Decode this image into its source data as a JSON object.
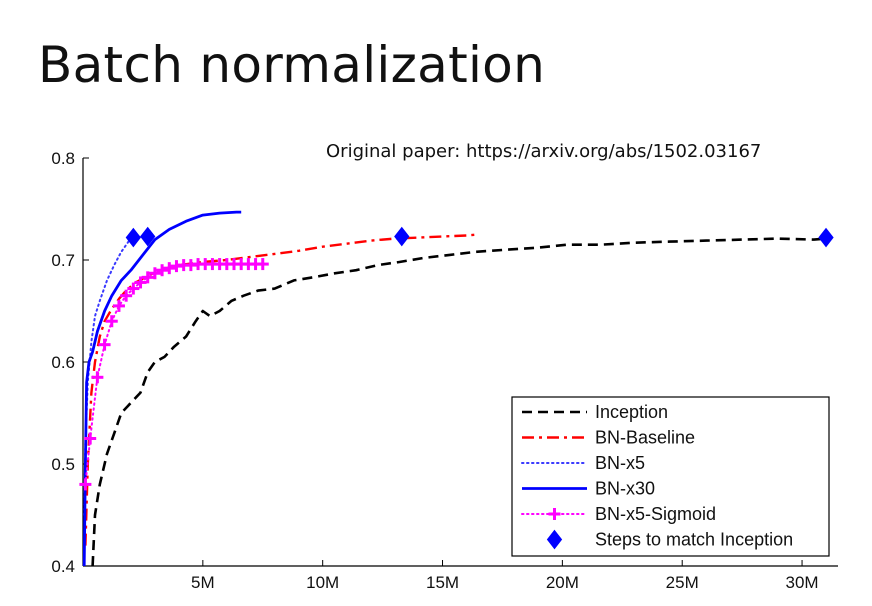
{
  "slide": {
    "title": "Batch normalization",
    "paper_ref": "Original paper: https://arxiv.org/abs/1502.03167"
  },
  "chart_data": {
    "type": "line",
    "xlim": [
      0,
      31.5
    ],
    "ylim": [
      0.4,
      0.8
    ],
    "x_ticks": [
      {
        "value": 5,
        "label": "5M"
      },
      {
        "value": 10,
        "label": "10M"
      },
      {
        "value": 15,
        "label": "15M"
      },
      {
        "value": 20,
        "label": "20M"
      },
      {
        "value": 25,
        "label": "25M"
      },
      {
        "value": 30,
        "label": "30M"
      }
    ],
    "y_ticks": [
      {
        "value": 0.4,
        "label": "0.4"
      },
      {
        "value": 0.5,
        "label": "0.5"
      },
      {
        "value": 0.6,
        "label": "0.6"
      },
      {
        "value": 0.7,
        "label": "0.7"
      },
      {
        "value": 0.8,
        "label": "0.8"
      }
    ],
    "grid": false,
    "legend_position": "bottom-right",
    "series": [
      {
        "name": "Inception",
        "color": "#000000",
        "style": "dashed",
        "x": [
          0.4,
          0.5,
          0.7,
          1.0,
          1.3,
          1.6,
          2.0,
          2.4,
          2.7,
          3.0,
          3.4,
          3.8,
          4.3,
          4.7,
          5.0,
          5.3,
          5.7,
          6.2,
          6.7,
          7.3,
          8.0,
          8.8,
          9.6,
          10.5,
          11.4,
          12.3,
          13.2,
          14.2,
          15.3,
          16.4,
          17.6,
          18.9,
          20.2,
          21.6,
          23.0,
          24.5,
          26.0,
          27.5,
          29.0,
          30.5,
          31.0
        ],
        "y": [
          0.4,
          0.45,
          0.48,
          0.51,
          0.53,
          0.55,
          0.56,
          0.57,
          0.59,
          0.6,
          0.605,
          0.615,
          0.625,
          0.64,
          0.65,
          0.645,
          0.65,
          0.66,
          0.665,
          0.67,
          0.672,
          0.68,
          0.683,
          0.687,
          0.69,
          0.695,
          0.698,
          0.702,
          0.705,
          0.708,
          0.71,
          0.712,
          0.715,
          0.715,
          0.717,
          0.718,
          0.719,
          0.72,
          0.721,
          0.72,
          0.721
        ]
      },
      {
        "name": "BN-Baseline",
        "color": "#ff0000",
        "style": "dashdot",
        "x": [
          0.1,
          0.2,
          0.35,
          0.5,
          0.7,
          0.9,
          1.2,
          1.5,
          1.8,
          2.2,
          2.6,
          3.0,
          3.5,
          4.0,
          5.0,
          6.0,
          7.0,
          8.0,
          9.0,
          10.0,
          11.0,
          12.0,
          13.0,
          14.0,
          15.0,
          16.0,
          16.5
        ],
        "y": [
          0.42,
          0.5,
          0.57,
          0.6,
          0.625,
          0.64,
          0.652,
          0.662,
          0.67,
          0.678,
          0.683,
          0.688,
          0.692,
          0.695,
          0.698,
          0.7,
          0.703,
          0.706,
          0.709,
          0.713,
          0.716,
          0.719,
          0.721,
          0.722,
          0.723,
          0.724,
          0.725
        ]
      },
      {
        "name": "BN-x5",
        "color": "#3a3aff",
        "style": "dotted",
        "x": [
          0.05,
          0.1,
          0.2,
          0.35,
          0.5,
          0.7,
          1.0,
          1.3,
          1.6,
          1.9,
          2.1
        ],
        "y": [
          0.45,
          0.52,
          0.58,
          0.62,
          0.645,
          0.66,
          0.68,
          0.695,
          0.708,
          0.718,
          0.723
        ]
      },
      {
        "name": "BN-x30",
        "color": "#0000ff",
        "style": "solid",
        "x": [
          0.05,
          0.1,
          0.15,
          0.25,
          0.4,
          0.6,
          0.9,
          1.2,
          1.6,
          2.0,
          2.5,
          3.0,
          3.6,
          4.3,
          5.0,
          5.7,
          6.4,
          6.6
        ],
        "y": [
          0.4,
          0.5,
          0.58,
          0.6,
          0.61,
          0.63,
          0.65,
          0.665,
          0.68,
          0.69,
          0.705,
          0.72,
          0.73,
          0.738,
          0.744,
          0.746,
          0.747,
          0.747
        ]
      },
      {
        "name": "BN-x5-Sigmoid",
        "color": "#ff00ff",
        "style": "dotted-plus",
        "x": [
          0.1,
          0.3,
          0.6,
          0.9,
          1.2,
          1.5,
          1.8,
          2.1,
          2.4,
          2.7,
          3.0,
          3.3,
          3.6,
          3.9,
          4.2,
          4.5,
          4.8,
          5.1,
          5.4,
          5.7,
          6.0,
          6.3,
          6.6,
          6.9,
          7.2,
          7.5
        ],
        "y": [
          0.48,
          0.525,
          0.585,
          0.617,
          0.64,
          0.655,
          0.665,
          0.672,
          0.678,
          0.683,
          0.687,
          0.69,
          0.692,
          0.694,
          0.695,
          0.695,
          0.696,
          0.696,
          0.696,
          0.696,
          0.696,
          0.696,
          0.696,
          0.696,
          0.696,
          0.696
        ]
      },
      {
        "name": "Steps to match Inception",
        "color": "#0000ff",
        "style": "diamond-markers",
        "x": [
          2.1,
          2.7,
          13.3,
          31.0
        ],
        "y": [
          0.722,
          0.723,
          0.723,
          0.722
        ]
      }
    ]
  }
}
